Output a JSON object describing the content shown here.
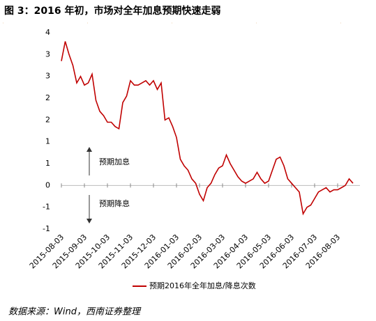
{
  "title": "图 3：2016 年初，市场对全年加息预期快速走弱",
  "source": "数据来源：Wind，西南证券整理",
  "chart_data": {
    "type": "line",
    "annotations": [
      "预期加息",
      "预期降息"
    ],
    "categories": [
      "2015-08-03",
      null,
      null,
      null,
      null,
      null,
      "2015-09-03",
      null,
      null,
      null,
      null,
      null,
      "2015-10-03",
      null,
      null,
      null,
      null,
      null,
      "2015-11-03",
      null,
      null,
      null,
      null,
      null,
      "2015-12-03",
      null,
      null,
      null,
      null,
      null,
      "2016-01-03",
      null,
      null,
      null,
      null,
      null,
      "2016-02-03",
      null,
      null,
      null,
      null,
      null,
      "2016-03-03",
      null,
      null,
      null,
      null,
      null,
      "2016-04-03",
      null,
      null,
      null,
      null,
      null,
      "2016-05-03",
      null,
      null,
      null,
      null,
      null,
      "2016-06-03",
      null,
      null,
      null,
      null,
      null,
      "2016-07-03",
      null,
      null,
      null,
      null,
      null,
      "2016-08-03",
      null,
      null,
      null,
      null
    ],
    "series": [
      {
        "name": "预期2016年全年加息/降息次数",
        "color": "#c00000",
        "values": [
          2.85,
          3.3,
          3.0,
          2.75,
          2.35,
          2.5,
          2.3,
          2.35,
          2.55,
          1.95,
          1.7,
          1.6,
          1.45,
          1.45,
          1.35,
          1.3,
          1.9,
          2.05,
          2.4,
          2.3,
          2.3,
          2.35,
          2.4,
          2.3,
          2.4,
          2.2,
          2.35,
          1.5,
          1.55,
          1.35,
          1.1,
          0.6,
          0.45,
          0.35,
          0.15,
          0.05,
          -0.2,
          -0.35,
          -0.05,
          0.05,
          0.25,
          0.4,
          0.45,
          0.7,
          0.5,
          0.35,
          0.2,
          0.1,
          0.05,
          0.1,
          0.15,
          0.3,
          0.15,
          0.05,
          0.1,
          0.35,
          0.6,
          0.65,
          0.45,
          0.15,
          0.05,
          -0.05,
          -0.15,
          -0.65,
          -0.5,
          -0.45,
          -0.3,
          -0.15,
          -0.1,
          -0.05,
          -0.15,
          -0.1,
          -0.1,
          -0.05,
          0.0,
          0.15,
          0.05
        ]
      }
    ],
    "ylim": [
      -1,
      3.5
    ],
    "yticks": [
      {
        "value": 3.5,
        "label": "4"
      },
      3,
      {
        "value": 2.5,
        "label": "3"
      },
      2,
      {
        "value": 1.5,
        "label": "2"
      },
      1,
      {
        "value": 0.5,
        "label": "1"
      },
      0,
      {
        "value": -0.5,
        "label": "-1"
      },
      -1
    ],
    "zero_line": true,
    "legend": "bottom"
  }
}
